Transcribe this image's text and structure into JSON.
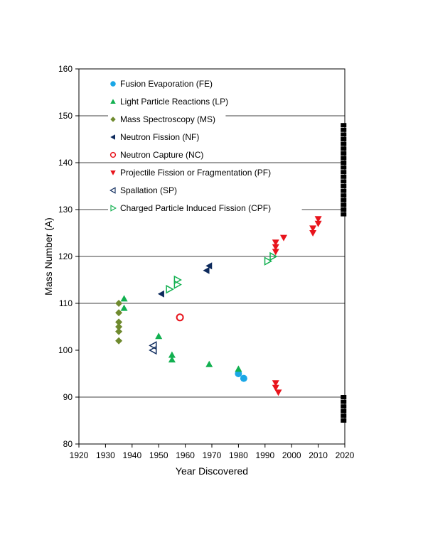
{
  "chart_data": {
    "type": "scatter",
    "xlabel": "Year Discovered",
    "ylabel": "Mass Number (A)",
    "xlim": [
      1920,
      2020
    ],
    "ylim": [
      80,
      160
    ],
    "x_ticks": [
      1920,
      1930,
      1940,
      1950,
      1960,
      1970,
      1980,
      1990,
      2000,
      2010,
      2020
    ],
    "y_ticks": [
      80,
      90,
      100,
      110,
      120,
      130,
      140,
      150,
      160
    ],
    "gridlines_y": [
      90,
      110,
      120,
      130,
      140,
      150
    ],
    "legend_placement": "top-left",
    "series": [
      {
        "name": "Fusion Evaporation (FE)",
        "color": "#1aa7e6",
        "marker": "circle",
        "points": [
          [
            1980,
            95
          ],
          [
            1982,
            94
          ]
        ]
      },
      {
        "name": "Light Particle Reactions (LP)",
        "color": "#12b050",
        "marker": "triangle-up",
        "points": [
          [
            1937,
            111
          ],
          [
            1937,
            109
          ],
          [
            1950,
            103
          ],
          [
            1955,
            99
          ],
          [
            1955,
            98
          ],
          [
            1969,
            97
          ],
          [
            1980,
            96
          ]
        ]
      },
      {
        "name": "Mass Spectroscopy (MS)",
        "color": "#6f8a2e",
        "marker": "diamond",
        "points": [
          [
            1935,
            110
          ],
          [
            1935,
            108
          ],
          [
            1935,
            106
          ],
          [
            1935,
            105
          ],
          [
            1935,
            104
          ],
          [
            1935,
            102
          ]
        ]
      },
      {
        "name": "Neutron Fission (NF)",
        "color": "#0d2a5c",
        "marker": "triangle-left",
        "points": [
          [
            1951,
            112
          ],
          [
            1968,
            117
          ],
          [
            1969,
            118
          ]
        ]
      },
      {
        "name": "Neutron Capture (NC)",
        "color": "#e8141c",
        "marker": "circle-open",
        "points": [
          [
            1958,
            107
          ]
        ]
      },
      {
        "name": "Projectile Fission or Fragmentation (PF)",
        "color": "#e8141c",
        "marker": "triangle-down",
        "points": [
          [
            1994,
            123
          ],
          [
            1994,
            122
          ],
          [
            1994,
            121
          ],
          [
            1997,
            124
          ],
          [
            2008,
            126
          ],
          [
            2008,
            125
          ],
          [
            2010,
            128
          ],
          [
            2010,
            127
          ],
          [
            1994,
            93
          ],
          [
            1994,
            92
          ],
          [
            1995,
            91
          ]
        ]
      },
      {
        "name": "Spallation (SP)",
        "color": "#0d2a5c",
        "marker": "triangle-left-open",
        "points": [
          [
            1948,
            101
          ],
          [
            1948,
            100
          ]
        ]
      },
      {
        "name": "Charged Particle Induced Fission (CPF)",
        "color": "#12b050",
        "marker": "triangle-right-open",
        "points": [
          [
            1954,
            113
          ],
          [
            1957,
            115
          ],
          [
            1957,
            114
          ],
          [
            1991,
            119
          ],
          [
            1993,
            120
          ]
        ]
      }
    ],
    "edge_markers": {
      "color": "#000000",
      "x": 2019,
      "ranges": [
        [
          129,
          148
        ],
        [
          85,
          90
        ]
      ]
    }
  }
}
